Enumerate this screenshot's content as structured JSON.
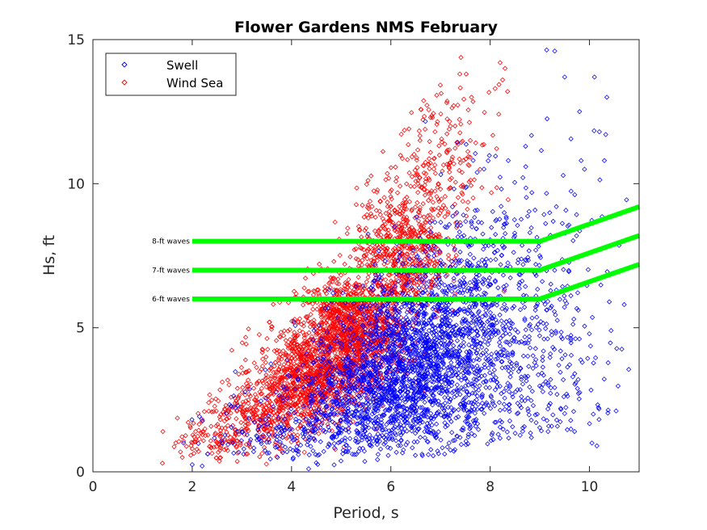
{
  "chart_data": {
    "type": "scatter",
    "title": "Flower Gardens NMS February",
    "xlabel": "Period, s",
    "ylabel": "Hs, ft",
    "xlim": [
      0,
      11
    ],
    "ylim": [
      0,
      15
    ],
    "xticks": [
      "0",
      "2",
      "4",
      "6",
      "8",
      "10"
    ],
    "yticks": [
      "0",
      "5",
      "10",
      "15"
    ],
    "grid": false,
    "legend_placement": "top-left",
    "legend": [
      "Swell",
      "Wind Sea"
    ],
    "series": [
      {
        "name": "Swell",
        "color": "#0000ff",
        "marker": "diamond",
        "clusters": [
          {
            "cx": 6.6,
            "cy": 4.0,
            "sx": 0.85,
            "sy": 1.4,
            "n": 1500
          },
          {
            "cx": 5.6,
            "cy": 2.4,
            "sx": 0.9,
            "sy": 0.9,
            "n": 700
          },
          {
            "cx": 7.8,
            "cy": 6.5,
            "sx": 0.7,
            "sy": 1.9,
            "n": 450
          },
          {
            "cx": 8.6,
            "cy": 3.0,
            "sx": 0.8,
            "sy": 1.6,
            "n": 260
          },
          {
            "cx": 4.0,
            "cy": 1.4,
            "sx": 0.8,
            "sy": 0.6,
            "n": 160
          },
          {
            "cx": 9.6,
            "cy": 5.5,
            "sx": 0.6,
            "sy": 3.0,
            "n": 110
          }
        ],
        "x": [
          9.3,
          9.5,
          10.1,
          10.35,
          9.8,
          10.3,
          10.2,
          10.4,
          9.9,
          10.05,
          10.15,
          9.7,
          8.8,
          9.0,
          2.0,
          2.2
        ],
        "y": [
          14.6,
          13.7,
          13.7,
          13.0,
          12.5,
          10.8,
          11.8,
          5.9,
          10.5,
          1.0,
          0.9,
          1.4,
          8.3,
          7.5,
          0.25,
          0.2
        ]
      },
      {
        "name": "Wind Sea",
        "color": "#ff0000",
        "marker": "diamond",
        "clusters": [
          {
            "cx": 5.2,
            "cy": 4.8,
            "sx": 0.55,
            "sy": 1.0,
            "n": 1300
          },
          {
            "cx": 4.3,
            "cy": 3.2,
            "sx": 0.5,
            "sy": 0.8,
            "n": 800
          },
          {
            "cx": 6.2,
            "cy": 7.6,
            "sx": 0.45,
            "sy": 1.2,
            "n": 650
          },
          {
            "cx": 3.3,
            "cy": 1.9,
            "sx": 0.55,
            "sy": 0.6,
            "n": 300
          },
          {
            "cx": 7.0,
            "cy": 10.5,
            "sx": 0.5,
            "sy": 1.4,
            "n": 220
          },
          {
            "cx": 2.4,
            "cy": 1.1,
            "sx": 0.4,
            "sy": 0.4,
            "n": 90
          }
        ],
        "x": [
          8.2,
          8.3,
          8.25,
          8.35,
          8.1,
          7.6,
          7.2,
          1.4,
          1.8,
          2.0
        ],
        "y": [
          14.2,
          14.0,
          13.6,
          13.2,
          13.3,
          11.5,
          12.0,
          0.3,
          0.5,
          0.8
        ]
      }
    ],
    "reference_lines": [
      {
        "label": "8-ft waves",
        "color": "#00ff00",
        "x": [
          2,
          9,
          11
        ],
        "y": [
          8,
          8,
          9.2
        ]
      },
      {
        "label": "7-ft waves",
        "color": "#00ff00",
        "x": [
          2,
          9,
          11
        ],
        "y": [
          7,
          7,
          8.2
        ]
      },
      {
        "label": "6-ft waves",
        "color": "#00ff00",
        "x": [
          2,
          9,
          11
        ],
        "y": [
          6,
          6,
          7.2
        ]
      }
    ]
  }
}
